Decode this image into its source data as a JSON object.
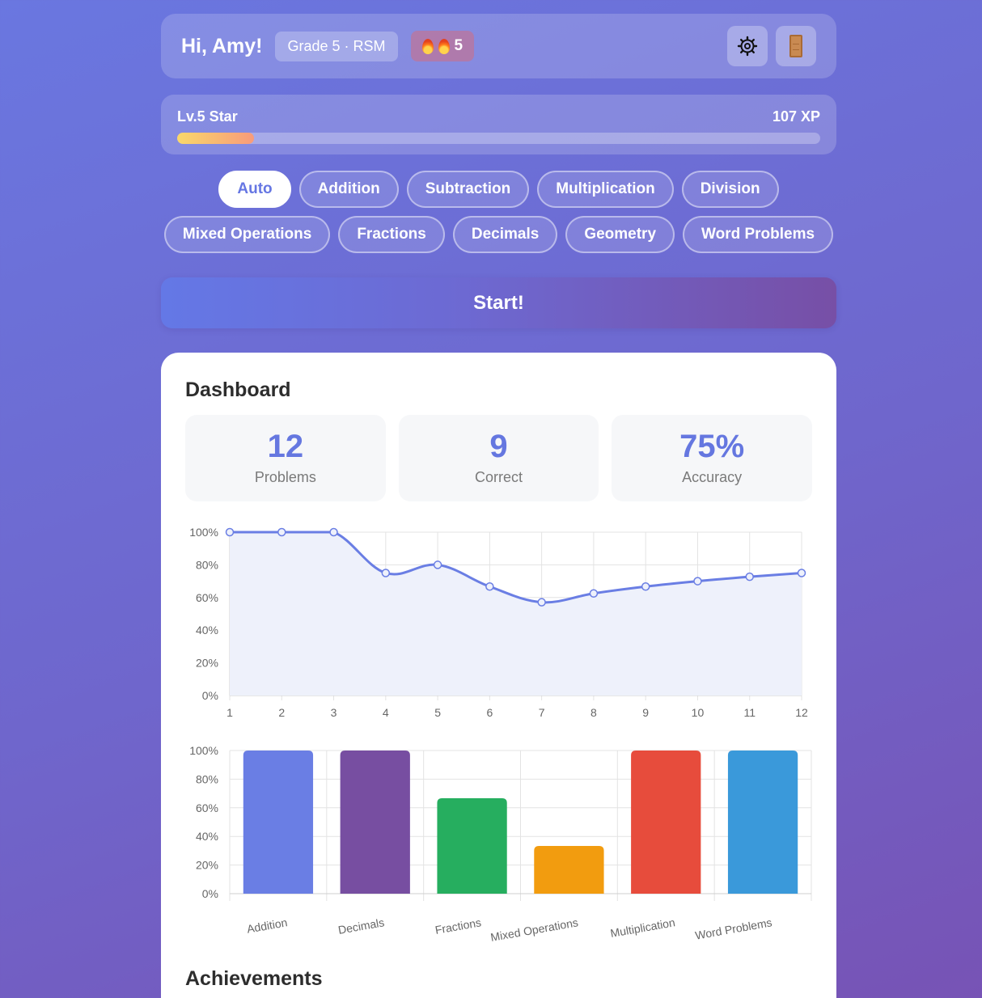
{
  "header": {
    "greeting": "Hi, Amy!",
    "grade_badge": "Grade 5 · RSM",
    "streak": {
      "count": "5",
      "icon": "flame-icon"
    },
    "settings_icon": "gear-icon",
    "logout_icon": "door-icon"
  },
  "level": {
    "name": "Lv.5 Star",
    "xp": "107 XP",
    "progress_fraction": 0.12
  },
  "topics": [
    {
      "label": "Auto",
      "active": true
    },
    {
      "label": "Addition",
      "active": false
    },
    {
      "label": "Subtraction",
      "active": false
    },
    {
      "label": "Multiplication",
      "active": false
    },
    {
      "label": "Division",
      "active": false
    },
    {
      "label": "Mixed Operations",
      "active": false
    },
    {
      "label": "Fractions",
      "active": false
    },
    {
      "label": "Decimals",
      "active": false
    },
    {
      "label": "Geometry",
      "active": false
    },
    {
      "label": "Word Problems",
      "active": false
    }
  ],
  "start_label": "Start!",
  "dashboard": {
    "title": "Dashboard",
    "stats": [
      {
        "value": "12",
        "label": "Problems"
      },
      {
        "value": "9",
        "label": "Correct"
      },
      {
        "value": "75%",
        "label": "Accuracy"
      }
    ]
  },
  "achievements_title": "Achievements",
  "chart_data": [
    {
      "type": "line",
      "x": [
        1,
        2,
        3,
        4,
        5,
        6,
        7,
        8,
        9,
        10,
        11,
        12
      ],
      "values": [
        100,
        100,
        100,
        75,
        80,
        66.7,
        57.1,
        62.5,
        66.7,
        70,
        72.7,
        75
      ],
      "ylim": [
        0,
        100
      ],
      "yticks": [
        "0%",
        "20%",
        "40%",
        "60%",
        "80%",
        "100%"
      ],
      "grid": true,
      "color": "#6a7ee4",
      "fill": "#eef1fb"
    },
    {
      "type": "bar",
      "categories": [
        "Addition",
        "Decimals",
        "Fractions",
        "Mixed Operations",
        "Multiplication",
        "Word Problems"
      ],
      "values": [
        100,
        100,
        66.7,
        33.3,
        100,
        100
      ],
      "colors": [
        "#6a7ee4",
        "#774ea1",
        "#26ae5f",
        "#f29c0f",
        "#e74c3c",
        "#3a99da"
      ],
      "ylim": [
        0,
        100
      ],
      "yticks": [
        "0%",
        "20%",
        "40%",
        "60%",
        "80%",
        "100%"
      ],
      "grid": true
    }
  ]
}
